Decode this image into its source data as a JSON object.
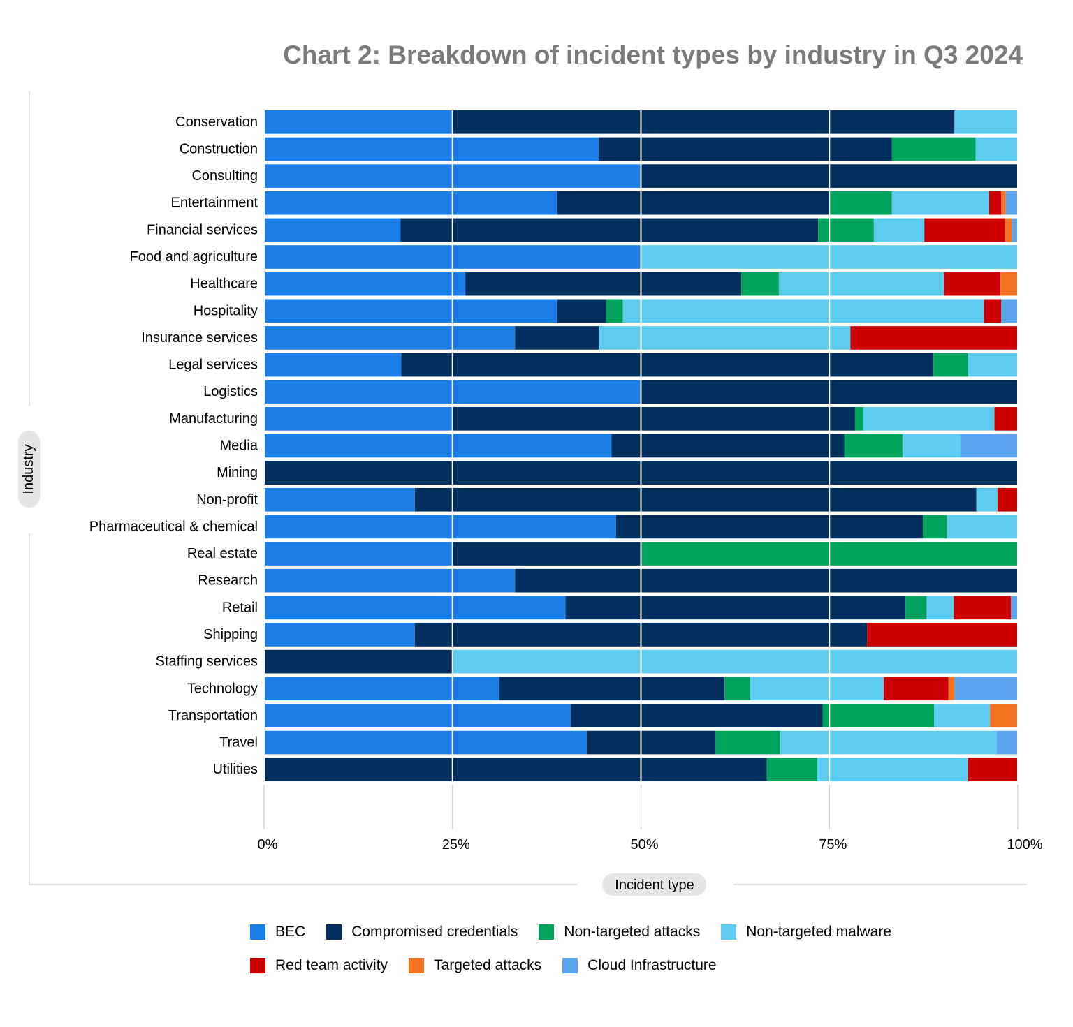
{
  "chart_data": {
    "type": "bar",
    "orientation": "horizontal",
    "stacked": "percent",
    "title": "Chart 2: Breakdown of incident types by industry in Q3 2024",
    "xlabel": "Incident type",
    "ylabel": "Industry",
    "xlim": [
      0,
      100
    ],
    "x_ticks": [
      "0%",
      "25%",
      "50%",
      "75%",
      "100%"
    ],
    "grid": "vertical",
    "legend_position": "bottom",
    "categories": [
      "Conservation",
      "Construction",
      "Consulting",
      "Entertainment",
      "Financial services",
      "Food and agriculture",
      "Healthcare",
      "Hospitality",
      "Insurance services",
      "Legal services",
      "Logistics",
      "Manufacturing",
      "Media",
      "Mining",
      "Non-profit",
      "Pharmaceutical & chemical",
      "Real estate",
      "Research",
      "Retail",
      "Shipping",
      "Staffing services",
      "Technology",
      "Transportation",
      "Travel",
      "Utilities"
    ],
    "series": [
      {
        "name": "BEC",
        "color": "#1a7ee6",
        "values": [
          25,
          44.4,
          50,
          38.9,
          18.1,
          50,
          26.7,
          38.9,
          33.3,
          18.2,
          50,
          25,
          46.1,
          0,
          20,
          46.7,
          25,
          33.3,
          40,
          20,
          0,
          31.2,
          40.7,
          42.8,
          0
        ]
      },
      {
        "name": "Compromised credentials",
        "color": "#002e5d",
        "values": [
          66.6,
          38.9,
          50,
          36.1,
          55.4,
          0,
          36.6,
          6.5,
          11.1,
          70.6,
          50,
          53.4,
          30.9,
          100,
          74.5,
          40.7,
          25,
          66.7,
          45.1,
          60,
          25,
          29.9,
          33.4,
          17.1,
          66.7
        ]
      },
      {
        "name": "Non-targeted attacks",
        "color": "#00a35c",
        "values": [
          0,
          11.1,
          0,
          8.3,
          7.4,
          0,
          5,
          2.2,
          0,
          4.6,
          0,
          1.1,
          7.7,
          0,
          0,
          3.2,
          50,
          0,
          2.8,
          0,
          0,
          3.4,
          14.8,
          8.6,
          6.7
        ]
      },
      {
        "name": "Non-targeted malware",
        "color": "#5ecbf0",
        "values": [
          8.4,
          5.6,
          0,
          12.9,
          6.7,
          50,
          21.9,
          47.9,
          33.4,
          6.6,
          0,
          17.4,
          7.7,
          0,
          2.8,
          9.4,
          0,
          0,
          3.6,
          0,
          75,
          17.7,
          7.4,
          28.7,
          20
        ]
      },
      {
        "name": "Red team activity",
        "color": "#cc0000",
        "values": [
          0,
          0,
          0,
          1.6,
          10.7,
          0,
          7.5,
          2.3,
          22.2,
          0,
          0,
          3.1,
          0,
          0,
          2.7,
          0,
          0,
          0,
          7.6,
          20,
          0,
          8.6,
          0,
          0,
          6.6
        ]
      },
      {
        "name": "Targeted attacks",
        "color": "#f47321",
        "values": [
          0,
          0,
          0,
          0.6,
          0.9,
          0,
          2.3,
          0,
          0,
          0,
          0,
          0,
          0,
          0,
          0,
          0,
          0,
          0,
          0,
          0,
          0,
          0.8,
          3.7,
          0,
          0
        ]
      },
      {
        "name": "Cloud Infrastructure",
        "color": "#5ba4ee",
        "values": [
          0,
          0,
          0,
          1.6,
          0.8,
          0,
          0,
          2.2,
          0,
          0,
          0,
          0,
          7.6,
          0,
          0,
          0,
          0,
          0,
          0.9,
          0,
          0,
          8.4,
          0,
          2.8,
          0
        ]
      }
    ]
  }
}
